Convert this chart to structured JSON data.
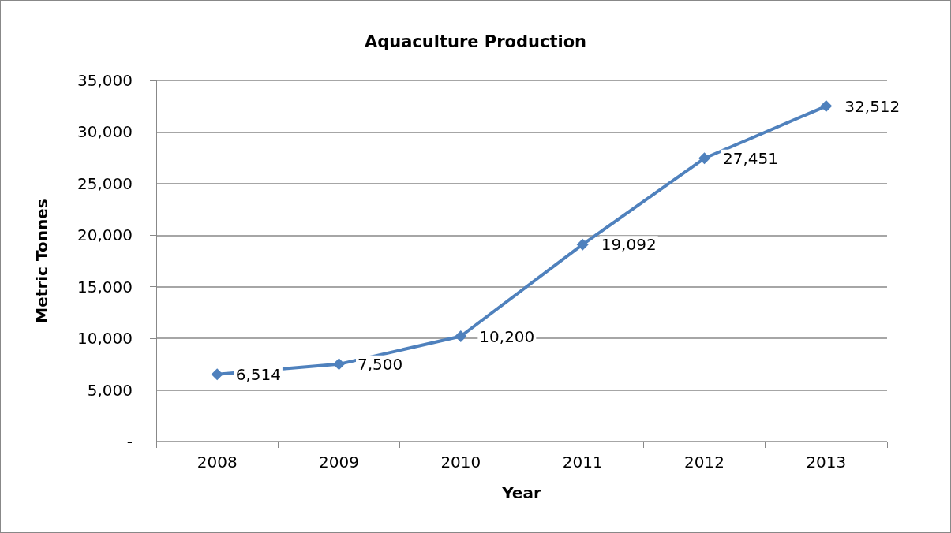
{
  "chart_data": {
    "type": "line",
    "title": "Aquaculture Production",
    "xlabel": "Year",
    "ylabel": "Metric Tonnes",
    "categories": [
      "2008",
      "2009",
      "2010",
      "2011",
      "2012",
      "2013"
    ],
    "series": [
      {
        "color": "#4f81bd",
        "values": [
          6514,
          7500,
          10200,
          19092,
          27451,
          32512
        ],
        "value_labels": [
          "6,514",
          "7,500",
          "10,200",
          "19,092",
          "27,451",
          "32,512"
        ]
      }
    ],
    "ylim": [
      0,
      35000
    ],
    "yticks": [
      {
        "value": 0,
        "label": "-"
      },
      {
        "value": 5000,
        "label": "5,000"
      },
      {
        "value": 10000,
        "label": "10,000"
      },
      {
        "value": 15000,
        "label": "15,000"
      },
      {
        "value": 20000,
        "label": "20,000"
      },
      {
        "value": 25000,
        "label": "25,000"
      },
      {
        "value": 30000,
        "label": "30,000"
      },
      {
        "value": 35000,
        "label": "35,000"
      }
    ],
    "grid": "y",
    "marker": "diamond",
    "line_style": "solid"
  }
}
